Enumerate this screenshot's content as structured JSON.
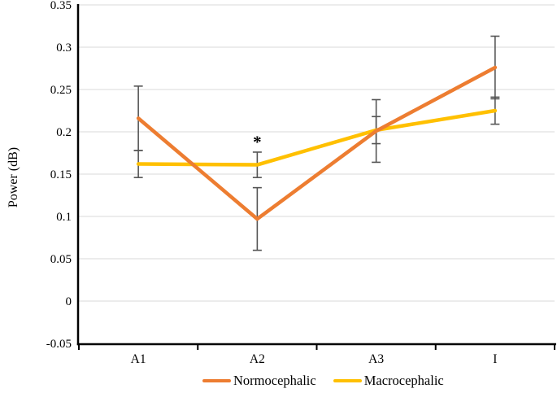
{
  "chart_data": {
    "type": "line",
    "title": "",
    "xlabel": "",
    "ylabel": "Power (dB)",
    "categories": [
      "A1",
      "A2",
      "A3",
      "I"
    ],
    "series": [
      {
        "name": "Normocephalic",
        "color": "#ED7D31",
        "values": [
          0.216,
          0.097,
          0.201,
          0.276
        ],
        "errors": [
          0.038,
          0.037,
          0.037,
          0.037
        ]
      },
      {
        "name": "Macrocephalic",
        "color": "#FFC000",
        "values": [
          0.162,
          0.161,
          0.202,
          0.225
        ],
        "errors": [
          0.016,
          0.015,
          0.016,
          0.016
        ]
      }
    ],
    "ylim": [
      -0.05,
      0.35
    ],
    "ytick_step": 0.05,
    "ytick_labels": [
      "0.35",
      "0.3",
      "0.25",
      "0.2",
      "0.15",
      "0.1",
      "0.05",
      "0",
      "-0.05"
    ],
    "grid": true,
    "legend_position": "bottom",
    "annotations": [
      {
        "text": "*",
        "category": "A2",
        "y_value": 0.19
      }
    ],
    "colors": {
      "grid": "#d9d9d9",
      "axis": "#000000",
      "error_bar": "#545454",
      "text": "#000000",
      "background": "#ffffff"
    }
  }
}
